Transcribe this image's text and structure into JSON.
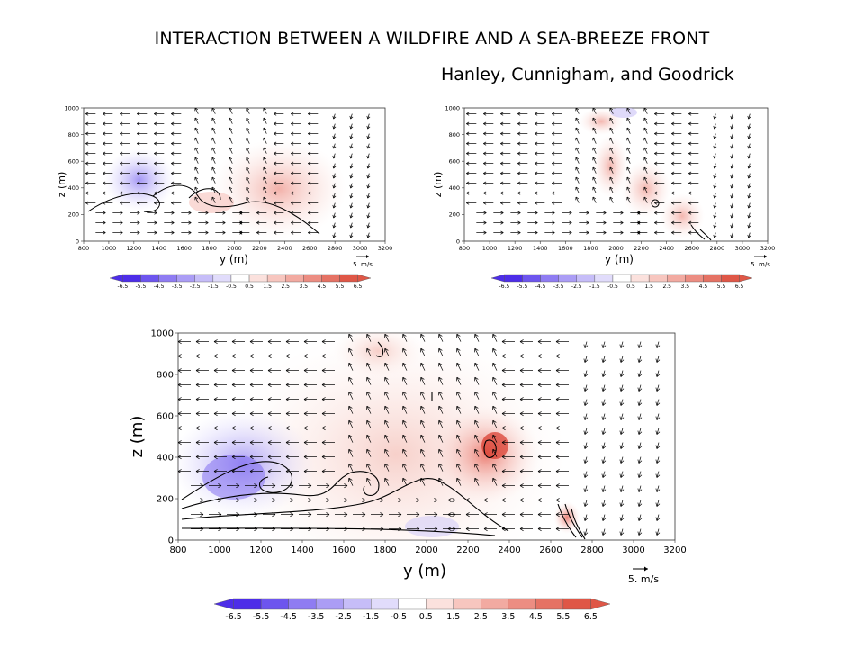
{
  "header": {
    "title": "INTERACTION BETWEEN A WILDFIRE AND A SEA-BREEZE FRONT",
    "authors": "Hanley, Cunnigham, and Goodrick"
  },
  "colors": {
    "negative": "#5a3df0",
    "positive": "#e0493a",
    "neutral": "#ffffff",
    "contour": "#000000"
  },
  "panels": [
    {
      "xlabel": "y (m)",
      "ylabel": "z (m)",
      "x_ticks": [
        "800",
        "1000",
        "1200",
        "1400",
        "1600",
        "1800",
        "2000",
        "2200",
        "2400",
        "2600",
        "2800",
        "3000",
        "3200"
      ],
      "y_ticks": [
        "0",
        "200",
        "400",
        "600",
        "800",
        "1000"
      ],
      "vector_ref": "5. m/s",
      "colorbar_ticks": [
        "-6.5",
        "-5.5",
        "-4.5",
        "-3.5",
        "-2.5",
        "-1.5",
        "-0.5",
        "0.5",
        "1.5",
        "2.5",
        "3.5",
        "4.5",
        "5.5",
        "6.5"
      ]
    },
    {
      "xlabel": "y (m)",
      "ylabel": "z (m)",
      "x_ticks": [
        "800",
        "1000",
        "1200",
        "1400",
        "1600",
        "1800",
        "2000",
        "2200",
        "2400",
        "2600",
        "2800",
        "3000",
        "3200"
      ],
      "y_ticks": [
        "0",
        "200",
        "400",
        "600",
        "800",
        "1000"
      ],
      "vector_ref": "5. m/s",
      "colorbar_ticks": [
        "-6.5",
        "-5.5",
        "-4.5",
        "-3.5",
        "-2.5",
        "-1.5",
        "-0.5",
        "0.5",
        "1.5",
        "2.5",
        "3.5",
        "4.5",
        "5.5",
        "6.5"
      ]
    },
    {
      "xlabel": "y (m)",
      "ylabel": "z (m)",
      "x_ticks": [
        "800",
        "1000",
        "1200",
        "1400",
        "1600",
        "1800",
        "2000",
        "2200",
        "2400",
        "2600",
        "2800",
        "3000",
        "3200"
      ],
      "y_ticks": [
        "0",
        "200",
        "400",
        "600",
        "800",
        "1000"
      ],
      "vector_ref": "5. m/s",
      "colorbar_ticks": [
        "-6.5",
        "-5.5",
        "-4.5",
        "-3.5",
        "-2.5",
        "-1.5",
        "-0.5",
        "0.5",
        "1.5",
        "2.5",
        "3.5",
        "4.5",
        "5.5",
        "6.5"
      ]
    }
  ]
}
